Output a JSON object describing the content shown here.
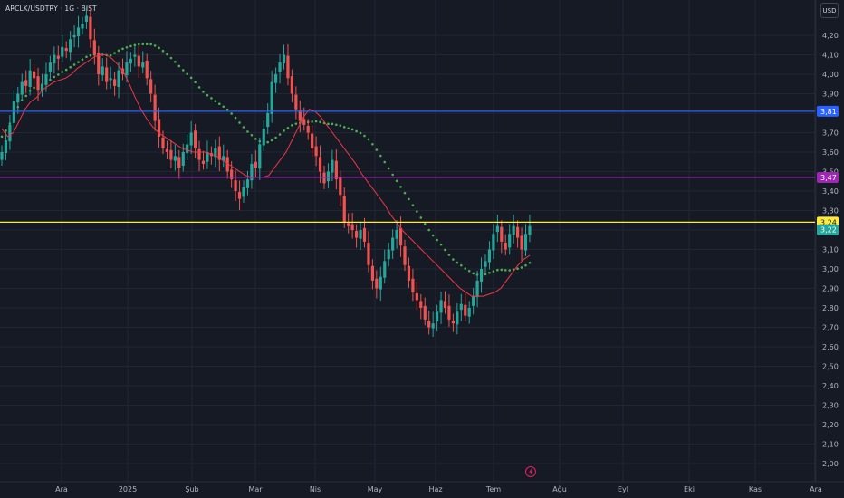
{
  "header": {
    "symbol": "ARCLK/USDTRY · 1G · BIST",
    "currency_button": "USD"
  },
  "colors": {
    "background": "#161a25",
    "grid": "#232632",
    "up": "#26a69a",
    "down": "#ef5350",
    "ema": "#f23645",
    "dotted_ma": "#4caf50",
    "axis_text": "#b2b5be"
  },
  "icons": {
    "lightning": "lightning-icon"
  },
  "chart_data": {
    "type": "candlestick",
    "title": "ARCLK/USDTRY · 1G · BIST",
    "y_axis": {
      "range": [
        1.94,
        4.34
      ],
      "ticks": [
        "4,20",
        "4,10",
        "4,00",
        "3,90",
        "3,80",
        "3,70",
        "3,60",
        "3,50",
        "3,40",
        "3,30",
        "3,20",
        "3,10",
        "3,00",
        "2,90",
        "2,80",
        "2,70",
        "2,60",
        "2,50",
        "2,40",
        "2,30",
        "2,20",
        "2,10",
        "2,00"
      ]
    },
    "x_axis": {
      "labels": [
        "Ara",
        "2025",
        "Şub",
        "Mar",
        "Nis",
        "May",
        "Haz",
        "Tem",
        "Ağu",
        "Eyl",
        "Eki",
        "Kas",
        "Ara"
      ]
    },
    "grid": true,
    "horizontal_lines": [
      {
        "value": 3.81,
        "label": "3,81",
        "color": "#2962ff"
      },
      {
        "value": 3.47,
        "label": "3,47",
        "color": "#9c27b0"
      },
      {
        "value": 3.24,
        "label": "3,24",
        "color": "#ffeb3b"
      }
    ],
    "last_price_label": "3,22",
    "last_price_value": 3.22,
    "close_series": [
      3.6,
      3.66,
      3.74,
      3.86,
      3.9,
      3.96,
      3.94,
      4.02,
      3.98,
      3.92,
      3.95,
      4.0,
      4.06,
      4.1,
      4.08,
      4.14,
      4.12,
      4.18,
      4.2,
      4.24,
      4.26,
      4.3,
      4.18,
      4.1,
      4.0,
      4.04,
      3.96,
      3.98,
      3.94,
      4.02,
      4.0,
      4.06,
      4.08,
      4.1,
      4.04,
      4.06,
      3.98,
      3.9,
      3.76,
      3.68,
      3.62,
      3.6,
      3.56,
      3.58,
      3.52,
      3.6,
      3.64,
      3.7,
      3.62,
      3.56,
      3.54,
      3.6,
      3.58,
      3.62,
      3.56,
      3.58,
      3.5,
      3.46,
      3.4,
      3.36,
      3.42,
      3.46,
      3.54,
      3.52,
      3.64,
      3.72,
      3.8,
      3.96,
      4.0,
      4.06,
      4.1,
      3.98,
      3.9,
      3.82,
      3.76,
      3.74,
      3.7,
      3.62,
      3.58,
      3.5,
      3.44,
      3.5,
      3.56,
      3.46,
      3.38,
      3.24,
      3.22,
      3.2,
      3.16,
      3.2,
      3.14,
      3.02,
      2.94,
      2.9,
      2.96,
      3.04,
      3.1,
      3.16,
      3.2,
      3.12,
      3.02,
      2.94,
      2.88,
      2.84,
      2.8,
      2.74,
      2.7,
      2.72,
      2.78,
      2.84,
      2.8,
      2.74,
      2.72,
      2.78,
      2.82,
      2.76,
      2.8,
      2.86,
      2.94,
      3.0,
      3.04,
      3.1,
      3.18,
      3.22,
      3.14,
      3.1,
      3.18,
      3.22,
      3.16,
      3.1,
      3.18,
      3.22
    ],
    "ema_series": [
      3.72,
      3.68,
      3.7,
      3.76,
      3.82,
      3.86,
      3.88,
      3.92,
      3.94,
      3.96,
      3.97,
      3.98,
      4.0,
      4.03,
      4.05,
      4.07,
      4.09,
      4.1,
      4.1,
      4.08,
      4.05,
      4.01,
      3.95,
      3.88,
      3.82,
      3.77,
      3.73,
      3.7,
      3.68,
      3.66,
      3.64,
      3.62,
      3.61,
      3.6,
      3.6,
      3.6,
      3.59,
      3.58,
      3.56,
      3.54,
      3.52,
      3.5,
      3.48,
      3.47,
      3.47,
      3.47,
      3.48,
      3.52,
      3.56,
      3.6,
      3.66,
      3.72,
      3.78,
      3.82,
      3.81,
      3.78,
      3.74,
      3.7,
      3.66,
      3.62,
      3.58,
      3.54,
      3.49,
      3.45,
      3.41,
      3.37,
      3.33,
      3.28,
      3.24,
      3.2,
      3.17,
      3.14,
      3.11,
      3.08,
      3.05,
      3.02,
      2.99,
      2.96,
      2.93,
      2.9,
      2.88,
      2.86,
      2.86,
      2.86,
      2.87,
      2.88,
      2.9,
      2.94,
      2.98,
      3.02,
      3.05,
      3.07
    ]
  }
}
